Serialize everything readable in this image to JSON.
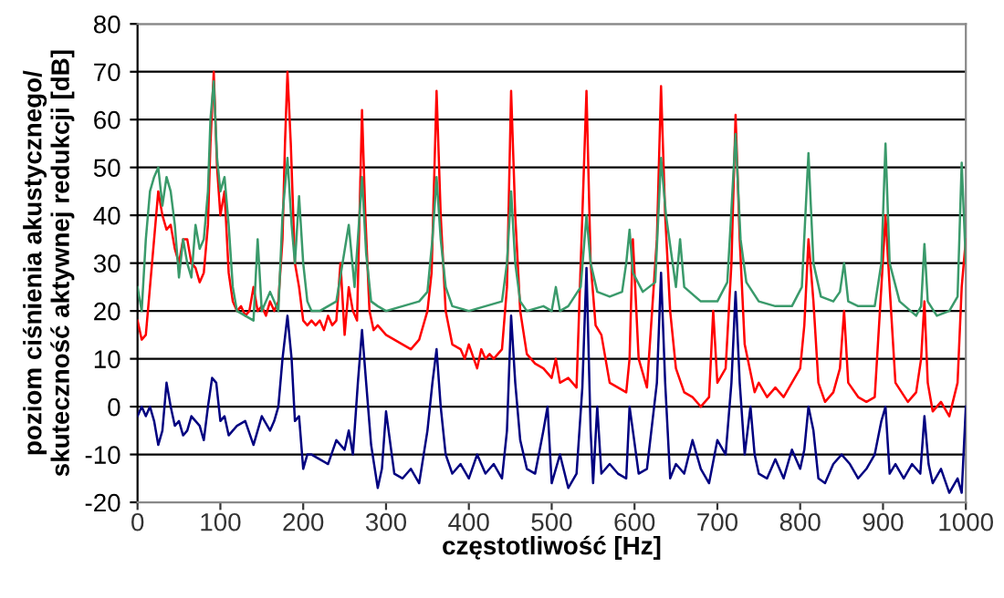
{
  "chart_data": {
    "type": "line",
    "xlabel": "częstotliwość [Hz]",
    "ylabel": "poziom ciśnienia akustycznego/\nskuteczność aktywnej redukcji [dB]",
    "xlim": [
      0,
      1000
    ],
    "xticks": [
      0,
      100,
      200,
      300,
      400,
      500,
      600,
      700,
      800,
      900,
      1000
    ],
    "ylim": [
      -20,
      80
    ],
    "yticks": [
      -20,
      -10,
      0,
      10,
      20,
      30,
      40,
      50,
      60,
      70,
      80
    ],
    "grid": "y",
    "legend": false,
    "marker": "none",
    "line_style": "solid",
    "series": [
      {
        "color": "#3a9a6b",
        "x": [
          0,
          5,
          10,
          15,
          20,
          25,
          30,
          35,
          40,
          45,
          50,
          55,
          60,
          65,
          70,
          75,
          80,
          85,
          88,
          92,
          96,
          100,
          105,
          110,
          115,
          120,
          130,
          140,
          145,
          150,
          160,
          170,
          175,
          181,
          186,
          190,
          195,
          200,
          205,
          210,
          220,
          240,
          255,
          262,
          266,
          271,
          276,
          282,
          290,
          300,
          320,
          340,
          350,
          356,
          361,
          366,
          372,
          380,
          400,
          420,
          440,
          446,
          451,
          456,
          462,
          470,
          490,
          500,
          505,
          510,
          520,
          535,
          542,
          547,
          555,
          570,
          585,
          590,
          594,
          598,
          610,
          625,
          632,
          638,
          650,
          655,
          660,
          680,
          700,
          712,
          716,
          722,
          728,
          735,
          750,
          770,
          790,
          802,
          810,
          816,
          825,
          840,
          848,
          853,
          858,
          870,
          890,
          898,
          903,
          908,
          920,
          940,
          946,
          950,
          954,
          965,
          980,
          990,
          995,
          1000
        ],
        "values": [
          25,
          20,
          35,
          45,
          48,
          50,
          42,
          48,
          45,
          38,
          27,
          35,
          30,
          27,
          38,
          33,
          35,
          45,
          60,
          68,
          52,
          45,
          48,
          38,
          25,
          20,
          19,
          18,
          35,
          20,
          24,
          20,
          40,
          52,
          38,
          30,
          44,
          30,
          22,
          20,
          20,
          22,
          38,
          25,
          35,
          48,
          32,
          22,
          21,
          20,
          21,
          22,
          24,
          35,
          48,
          35,
          25,
          21,
          20,
          21,
          22,
          30,
          45,
          30,
          22,
          20,
          21,
          20,
          25,
          20,
          21,
          25,
          40,
          30,
          24,
          23,
          24,
          30,
          37,
          28,
          24,
          26,
          52,
          40,
          25,
          35,
          25,
          22,
          22,
          26,
          38,
          57,
          35,
          26,
          22,
          21,
          21,
          25,
          53,
          30,
          23,
          22,
          24,
          30,
          22,
          21,
          21,
          30,
          55,
          30,
          22,
          19,
          21,
          34,
          22,
          19,
          20,
          23,
          51,
          30
        ]
      },
      {
        "color": "#ff0000",
        "x": [
          0,
          5,
          10,
          15,
          20,
          25,
          30,
          35,
          40,
          45,
          50,
          55,
          60,
          65,
          70,
          75,
          80,
          85,
          88,
          92,
          96,
          100,
          105,
          110,
          115,
          120,
          125,
          130,
          135,
          140,
          145,
          150,
          155,
          160,
          165,
          170,
          175,
          178,
          181,
          185,
          190,
          195,
          200,
          205,
          210,
          215,
          220,
          225,
          230,
          235,
          240,
          245,
          250,
          255,
          260,
          265,
          268,
          271,
          275,
          280,
          285,
          290,
          300,
          310,
          320,
          330,
          340,
          350,
          355,
          361,
          366,
          372,
          380,
          390,
          395,
          400,
          410,
          415,
          420,
          425,
          430,
          440,
          446,
          451,
          456,
          462,
          470,
          480,
          490,
          500,
          505,
          510,
          520,
          530,
          537,
          542,
          547,
          553,
          560,
          570,
          580,
          590,
          594,
          598,
          605,
          615,
          627,
          632,
          637,
          643,
          650,
          660,
          670,
          680,
          690,
          695,
          700,
          710,
          717,
          722,
          727,
          733,
          745,
          750,
          760,
          770,
          780,
          790,
          800,
          805,
          810,
          816,
          822,
          830,
          840,
          848,
          853,
          858,
          870,
          880,
          890,
          898,
          903,
          908,
          915,
          930,
          940,
          946,
          950,
          954,
          960,
          970,
          980,
          990,
          995,
          1000
        ],
        "values": [
          18,
          14,
          15,
          25,
          35,
          45,
          40,
          37,
          38,
          33,
          30,
          35,
          35,
          30,
          29,
          26,
          28,
          38,
          55,
          70,
          50,
          40,
          45,
          28,
          22,
          20,
          21,
          19,
          20,
          25,
          20,
          21,
          19,
          22,
          20,
          22,
          35,
          55,
          70,
          55,
          30,
          25,
          18,
          17,
          18,
          17,
          18,
          16,
          19,
          17,
          18,
          30,
          15,
          25,
          20,
          18,
          40,
          62,
          40,
          20,
          16,
          17,
          15,
          14,
          13,
          12,
          14,
          20,
          28,
          66,
          40,
          20,
          13,
          12,
          10,
          13,
          8,
          12,
          10,
          11,
          10,
          12,
          25,
          66,
          40,
          20,
          11,
          9,
          8,
          6,
          10,
          5,
          6,
          4,
          40,
          66,
          30,
          17,
          15,
          5,
          4,
          3,
          10,
          35,
          10,
          4,
          35,
          67,
          40,
          20,
          8,
          3,
          2,
          0,
          2,
          20,
          5,
          8,
          30,
          61,
          35,
          13,
          3,
          5,
          2,
          4,
          2,
          5,
          8,
          17,
          35,
          22,
          5,
          1,
          3,
          8,
          20,
          5,
          2,
          1,
          2,
          25,
          40,
          25,
          5,
          1,
          3,
          10,
          22,
          5,
          -1,
          1,
          -2,
          5,
          25,
          35
        ]
      },
      {
        "color": "#000080",
        "x": [
          0,
          5,
          10,
          15,
          20,
          25,
          30,
          35,
          40,
          45,
          50,
          55,
          60,
          65,
          70,
          75,
          80,
          85,
          90,
          95,
          100,
          105,
          110,
          120,
          130,
          140,
          150,
          160,
          165,
          170,
          175,
          181,
          186,
          190,
          195,
          200,
          205,
          210,
          220,
          230,
          240,
          250,
          255,
          260,
          266,
          271,
          276,
          282,
          290,
          295,
          300,
          310,
          320,
          330,
          340,
          350,
          356,
          361,
          366,
          372,
          380,
          390,
          400,
          410,
          420,
          430,
          440,
          446,
          451,
          456,
          462,
          470,
          480,
          490,
          495,
          500,
          510,
          520,
          530,
          537,
          542,
          547,
          550,
          555,
          560,
          570,
          580,
          590,
          594,
          598,
          605,
          615,
          627,
          632,
          637,
          643,
          650,
          660,
          670,
          680,
          690,
          700,
          710,
          717,
          722,
          727,
          733,
          740,
          745,
          750,
          760,
          770,
          780,
          790,
          800,
          805,
          810,
          816,
          822,
          830,
          840,
          850,
          860,
          870,
          880,
          890,
          898,
          903,
          908,
          915,
          925,
          935,
          945,
          950,
          955,
          960,
          970,
          980,
          990,
          995,
          1000
        ],
        "values": [
          -2,
          0,
          -2,
          0,
          -3,
          -8,
          -5,
          5,
          0,
          -4,
          -3,
          -6,
          -5,
          -2,
          -3,
          -4,
          -7,
          0,
          6,
          5,
          -3,
          -2,
          -6,
          -4,
          -3,
          -8,
          -2,
          -5,
          -3,
          0,
          10,
          19,
          10,
          -3,
          -2,
          -13,
          -10,
          -10,
          -11,
          -12,
          -7,
          -9,
          -5,
          -10,
          5,
          16,
          5,
          -8,
          -17,
          -13,
          -1,
          -14,
          -15,
          -13,
          -16,
          -5,
          5,
          12,
          0,
          -10,
          -14,
          -12,
          -15,
          -10,
          -14,
          -12,
          -15,
          -5,
          19,
          5,
          -7,
          -13,
          -14,
          -5,
          0,
          -16,
          -10,
          -17,
          -14,
          4,
          29,
          -5,
          -16,
          0,
          -14,
          -12,
          -14,
          -15,
          0,
          -5,
          -14,
          -13,
          5,
          28,
          5,
          -15,
          -12,
          -14,
          -7,
          -13,
          -16,
          -7,
          -10,
          5,
          24,
          5,
          -10,
          0,
          -10,
          -14,
          -15,
          -11,
          -15,
          -9,
          -13,
          -9,
          0,
          -5,
          -15,
          -16,
          -12,
          -10,
          -12,
          -15,
          -13,
          -10,
          -3,
          0,
          -14,
          -12,
          -15,
          -12,
          -14,
          -2,
          -12,
          -16,
          -13,
          -18,
          -15,
          -18,
          0
        ]
      }
    ]
  }
}
